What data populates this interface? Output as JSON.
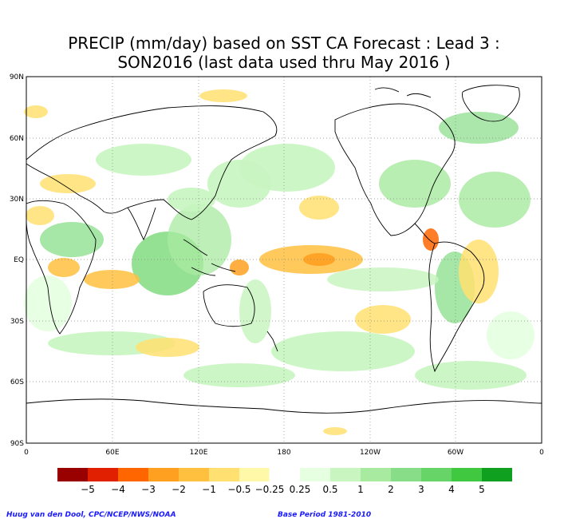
{
  "title": {
    "line1": "PRECIP (mm/day) based on SST CA Forecast : Lead 3 :",
    "line2": "SON2016 (last data used thru May 2016 )"
  },
  "axes": {
    "lat_ticks": [
      "90N",
      "60N",
      "30N",
      "EQ",
      "30S",
      "60S",
      "90S"
    ],
    "lon_ticks": [
      "0",
      "60E",
      "120E",
      "180",
      "120W",
      "60W",
      "0"
    ]
  },
  "legend": {
    "colors": [
      "#990000",
      "#e02000",
      "#ff6600",
      "#ffa020",
      "#ffc040",
      "#ffe070",
      "#fff8a8",
      "#ffffff",
      "#e6ffe0",
      "#c8f5c0",
      "#a8eaa0",
      "#88dd88",
      "#66d466",
      "#40c840",
      "#10a020"
    ],
    "labels": [
      "−5",
      "−4",
      "−3",
      "−2",
      "−1",
      "−0.5",
      "−0.25",
      "0.25",
      "0.5",
      "1",
      "2",
      "3",
      "4",
      "5"
    ]
  },
  "credits": {
    "left": "Huug van den Dool, CPC/NCEP/NWS/NOAA",
    "right": "Base Period 1981-2010"
  }
}
